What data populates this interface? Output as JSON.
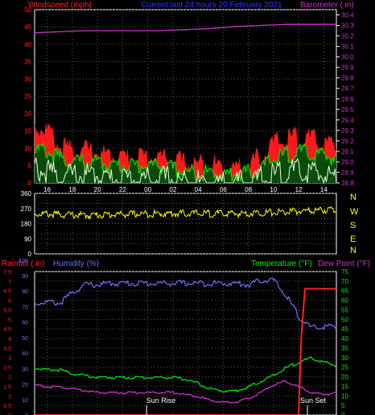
{
  "header": {
    "left_title": "Windspeed (mph)",
    "center_title": "Current last 24 hours 20 February 2021",
    "right_title": "Barometer (.in)"
  },
  "panel2": {
    "compass_letters": [
      "N",
      "W",
      "S",
      "E",
      "N"
    ]
  },
  "panel3": {
    "label_rainfall": "Rainfall (.in)",
    "label_humidity": "Humidity (%)",
    "label_temperature": "Temperature (°F)",
    "label_dewpoint": "Dew Point (°F)",
    "sunrise_label": "Sun Rise",
    "sunset_label": "Sun Set"
  },
  "colors": {
    "background": "#000000",
    "grid": "#5a5a5a",
    "axis": "#ffffff",
    "wind_gust": "#ff1a1a",
    "wind_avg": "#00dd00",
    "wind_min": "#e8ffe0",
    "barometer": "#cc33cc",
    "direction": "#ffff00",
    "humidity": "#7070ff",
    "temperature": "#00ee00",
    "dewpoint": "#dd33dd",
    "rainfall": "#ff2020",
    "windspeed_label": "#ff2020",
    "barometer_label": "#cc33cc",
    "title_label": "#3333ff",
    "compass": "#ffff00"
  },
  "chart_data": [
    {
      "type": "line",
      "title": "Current last 24 hours 20 February 2021",
      "x_tick_labels": [
        "16",
        "18",
        "20",
        "22",
        "00",
        "02",
        "04",
        "06",
        "08",
        "10",
        "12",
        "14"
      ],
      "x_range": [
        0,
        24
      ],
      "y_left_label": "Windspeed (mph)",
      "y_left_ticks": [
        0,
        5,
        10,
        15,
        20,
        25,
        30,
        35,
        40,
        45,
        50
      ],
      "y_left_range": [
        0,
        50
      ],
      "y_right_label": "Barometer (.in)",
      "y_right_ticks": [
        "28.8",
        "28.9",
        "29.0",
        "29.1",
        "29.2",
        "29.3",
        "29.4",
        "29.5",
        "29.6",
        "29.7",
        "29.8",
        "29.9",
        "30.0",
        "30.1",
        "30.2",
        "30.3",
        "30.4"
      ],
      "y_right_range": [
        28.8,
        30.45
      ],
      "series": [
        {
          "name": "",
          "axis": "right",
          "x": [
            0,
            2,
            4,
            6,
            8,
            10,
            12,
            14,
            16,
            18,
            20,
            22,
            24
          ],
          "values": [
            30.23,
            30.24,
            30.25,
            30.25,
            30.25,
            30.25,
            30.26,
            30.27,
            30.29,
            30.3,
            30.31,
            30.31,
            30.31
          ]
        },
        {
          "name": "",
          "axis": "left",
          "x": [
            0,
            1,
            2,
            3,
            4,
            5,
            6,
            7,
            8,
            9,
            10,
            11,
            12,
            13,
            14,
            15,
            16,
            17,
            18,
            19,
            20,
            21,
            22,
            23,
            24
          ],
          "values": [
            18,
            17,
            12,
            11,
            11,
            10,
            9,
            9,
            9,
            9,
            9,
            8,
            7,
            7,
            7,
            6,
            6,
            7,
            9,
            13,
            14,
            15,
            14,
            13,
            12
          ]
        },
        {
          "name": "",
          "axis": "left",
          "x": [
            0,
            1,
            2,
            3,
            4,
            5,
            6,
            7,
            8,
            9,
            10,
            11,
            12,
            13,
            14,
            15,
            16,
            17,
            18,
            19,
            20,
            21,
            22,
            23,
            24
          ],
          "values": [
            11,
            10,
            8,
            7,
            7,
            7,
            6,
            6,
            6,
            6,
            6,
            5,
            4,
            4,
            4,
            3.5,
            3.5,
            4,
            5,
            8,
            9,
            10,
            9,
            9,
            8
          ]
        },
        {
          "name": "",
          "axis": "left",
          "x": [
            0,
            1,
            2,
            3,
            4,
            5,
            6,
            7,
            8,
            9,
            10,
            11,
            12,
            13,
            14,
            15,
            16,
            17,
            18,
            19,
            20,
            21,
            22,
            23,
            24
          ],
          "values": [
            5,
            4,
            3,
            3,
            3,
            3,
            2,
            2,
            2,
            2,
            2,
            2,
            1,
            1,
            1,
            1,
            1,
            1,
            2,
            3,
            4,
            4,
            4,
            3,
            3
          ]
        }
      ]
    },
    {
      "type": "line",
      "title": "",
      "x_range": [
        0,
        24
      ],
      "y_ticks": [
        0,
        60,
        90,
        120,
        180,
        210,
        270,
        300,
        360
      ],
      "y_tick_labels": [
        "0",
        "90",
        "180",
        "270",
        "360"
      ],
      "y_range": [
        0,
        360
      ],
      "series": [
        {
          "name": "",
          "x": [
            0,
            2,
            4,
            6,
            8,
            10,
            12,
            14,
            16,
            18,
            20,
            22,
            24
          ],
          "values": [
            250,
            245,
            240,
            245,
            248,
            250,
            252,
            250,
            250,
            255,
            260,
            268,
            275
          ]
        }
      ]
    },
    {
      "type": "line",
      "title": "",
      "x_range": [
        0,
        24
      ],
      "y_left_outer_label": "Rainfall (.in)",
      "y_left_outer_ticks": [
        "0",
        "0.5",
        "1",
        "1.5",
        "2",
        "2.5",
        "3",
        "3.5",
        "4",
        "4.5",
        "5",
        "5.5",
        "6",
        "6.5",
        "7",
        "7.5"
      ],
      "y_left_outer_range": [
        0,
        7.5
      ],
      "y_left_inner_label": "Humidity (%)",
      "y_left_inner_ticks": [
        "0",
        "10",
        "20",
        "30",
        "40",
        "50",
        "60",
        "70",
        "80",
        "90",
        "100"
      ],
      "y_left_inner_range": [
        0,
        100
      ],
      "y_right_label": "Temperature (°F)",
      "y_right_ticks": [
        "0",
        "5",
        "10",
        "15",
        "20",
        "25",
        "30",
        "35",
        "40",
        "45",
        "50",
        "55",
        "60",
        "65",
        "70",
        "75"
      ],
      "y_right_range": [
        0,
        75
      ],
      "annotations": [
        "Sun Rise",
        "Sun Set"
      ],
      "series": [
        {
          "name": "Humidity (%)",
          "axis": "humidity",
          "x": [
            0,
            1,
            2,
            3,
            4,
            5,
            6,
            7,
            8,
            9,
            10,
            11,
            12,
            13,
            14,
            15,
            16,
            17,
            18,
            19,
            20,
            21,
            22,
            23,
            24
          ],
          "values": [
            73,
            74,
            73,
            80,
            85,
            85,
            86,
            86,
            86,
            86,
            86,
            86,
            86,
            86,
            86,
            86,
            86,
            85,
            88,
            88,
            78,
            65,
            57,
            58,
            58
          ]
        },
        {
          "name": "Temperature (°F)",
          "axis": "temperature",
          "x": [
            0,
            1,
            2,
            3,
            4,
            5,
            6,
            7,
            8,
            9,
            10,
            11,
            12,
            13,
            14,
            15,
            16,
            17,
            18,
            19,
            20,
            21,
            22,
            23,
            24
          ],
          "values": [
            25,
            24,
            24,
            22,
            21,
            20,
            20,
            20,
            20,
            20,
            20,
            20,
            19,
            17,
            14,
            13,
            13,
            15,
            18,
            21,
            25,
            28,
            30,
            28,
            26
          ]
        },
        {
          "name": "Dew Point (°F)",
          "axis": "temperature",
          "x": [
            0,
            1,
            2,
            3,
            4,
            5,
            6,
            7,
            8,
            9,
            10,
            11,
            12,
            13,
            14,
            15,
            16,
            17,
            18,
            19,
            20,
            21,
            22,
            23,
            24
          ],
          "values": [
            16,
            15,
            15,
            14,
            13,
            12,
            12,
            12,
            12,
            12,
            12,
            12,
            11,
            10,
            8,
            7,
            7,
            9,
            12,
            16,
            18,
            15,
            12,
            11,
            12
          ]
        },
        {
          "name": "Rainfall (.in)",
          "axis": "rainfall",
          "x": [
            0,
            4,
            8,
            12,
            16,
            20,
            21.0,
            21.2,
            21.5,
            22,
            24
          ],
          "values": [
            0,
            0,
            0,
            0,
            0,
            0,
            0,
            4,
            6.6,
            6.6,
            6.6
          ]
        }
      ]
    }
  ]
}
